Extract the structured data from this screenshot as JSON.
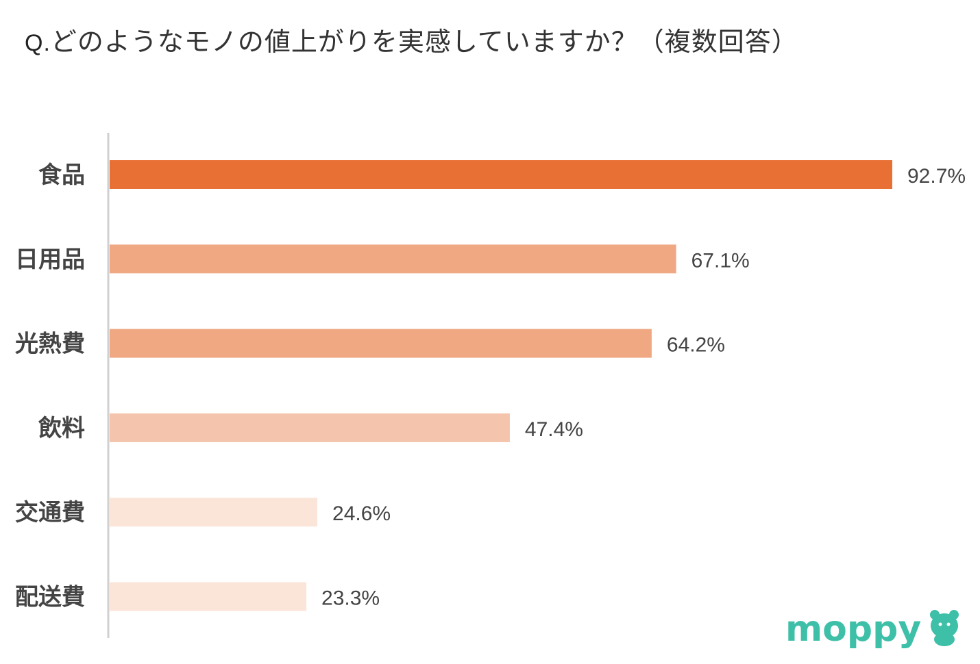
{
  "title_prefix": "Q.",
  "title_text": "どのようなモノの値上がりを実感していますか？（複数回答）",
  "chart_data": {
    "type": "bar",
    "orientation": "horizontal",
    "title": "Q.どのようなモノの値上がりを実感していますか？（複数回答）",
    "categories": [
      "食品",
      "日用品",
      "光熱費",
      "飲料",
      "交通費",
      "配送費"
    ],
    "values": [
      92.7,
      67.1,
      64.2,
      47.4,
      24.6,
      23.3
    ],
    "value_labels": [
      "92.7%",
      "67.1%",
      "64.2%",
      "47.4%",
      "24.6%",
      "23.3%"
    ],
    "unit": "%",
    "xlim": [
      0,
      100
    ],
    "grid": false,
    "legend": "none",
    "bar_colors": [
      "#e87035",
      "#f0a882",
      "#f0a882",
      "#f4c5ac",
      "#fbe4d8",
      "#fbe4d8"
    ]
  },
  "colors": {
    "axis": "#d0d0d0",
    "text": "#444444",
    "logo": "#3dbfa8"
  },
  "logo": {
    "text": "moppy",
    "icon": "mascot-icon"
  }
}
